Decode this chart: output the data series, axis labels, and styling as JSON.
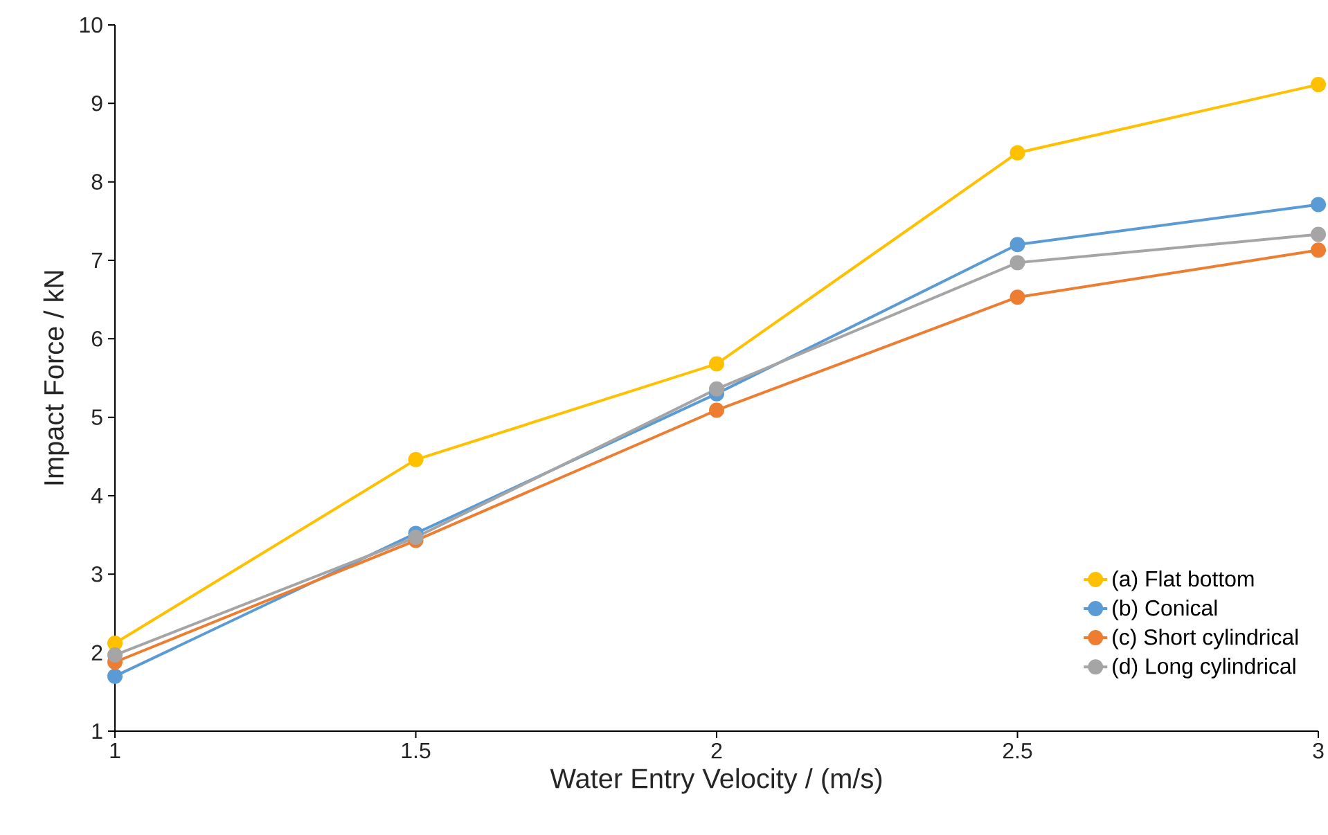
{
  "chart_data": {
    "type": "line",
    "xlabel": "Water Entry Velocity / (m/s)",
    "ylabel": "Impact Force / kN",
    "x": [
      1,
      1.5,
      2,
      2.5,
      3
    ],
    "xlim": [
      1,
      3
    ],
    "xticks": [
      1,
      1.5,
      2,
      2.5,
      3
    ],
    "ylim": [
      1,
      10
    ],
    "yticks": [
      1,
      2,
      3,
      4,
      5,
      6,
      7,
      8,
      9,
      10
    ],
    "marker": "circle",
    "line_style": "solid",
    "legend": "bottom right",
    "series": [
      {
        "name": "(a) Flat bottom",
        "color": "#ffc000",
        "values": [
          2.12,
          4.46,
          5.68,
          8.37,
          9.24
        ]
      },
      {
        "name": "(b) Conical",
        "color": "#5b9bd5",
        "values": [
          1.7,
          3.52,
          5.3,
          7.2,
          7.71
        ]
      },
      {
        "name": "(c) Short cylindrical",
        "color": "#ed7d31",
        "values": [
          1.88,
          3.43,
          5.09,
          6.53,
          7.13
        ]
      },
      {
        "name": "(d) Long cylindrical",
        "color": "#a5a5a5",
        "values": [
          1.97,
          3.47,
          5.36,
          6.97,
          7.33
        ]
      }
    ]
  }
}
